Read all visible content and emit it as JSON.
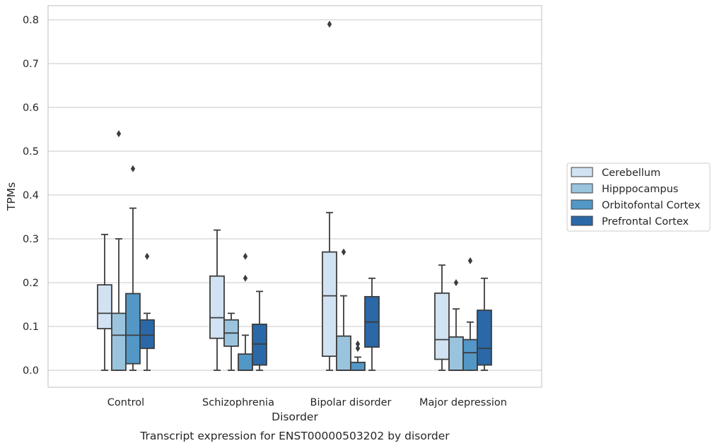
{
  "caption": "Transcript expression for ENST00000503202 by disorder",
  "chart_data": {
    "type": "box",
    "xlabel": "Disorder",
    "ylabel": "TPMs",
    "ylim": [
      -0.04,
      0.83
    ],
    "yticks": [
      0.0,
      0.1,
      0.2,
      0.3,
      0.4,
      0.5,
      0.6,
      0.7,
      0.8
    ],
    "ytick_labels": [
      "0.0",
      "0.1",
      "0.2",
      "0.3",
      "0.4",
      "0.5",
      "0.6",
      "0.7",
      "0.8"
    ],
    "grid": "horizontal",
    "legend_position": "right",
    "categories": [
      "Control",
      "Schizophrenia",
      "Bipolar disorder",
      "Major depression"
    ],
    "series": [
      {
        "name": "Cerebellum",
        "color": "#d1e2f2",
        "boxes": [
          {
            "whisker_low": 0.0,
            "q1": 0.095,
            "median": 0.13,
            "q3": 0.195,
            "whisker_high": 0.31,
            "outliers": []
          },
          {
            "whisker_low": 0.0,
            "q1": 0.073,
            "median": 0.12,
            "q3": 0.215,
            "whisker_high": 0.32,
            "outliers": []
          },
          {
            "whisker_low": 0.0,
            "q1": 0.032,
            "median": 0.17,
            "q3": 0.27,
            "whisker_high": 0.36,
            "outliers": [
              0.79
            ]
          },
          {
            "whisker_low": 0.0,
            "q1": 0.025,
            "median": 0.07,
            "q3": 0.176,
            "whisker_high": 0.24,
            "outliers": []
          }
        ]
      },
      {
        "name": "Hipppocampus",
        "color": "#9ac4de",
        "boxes": [
          {
            "whisker_low": 0.0,
            "q1": 0.0,
            "median": 0.08,
            "q3": 0.13,
            "whisker_high": 0.3,
            "outliers": [
              0.54
            ]
          },
          {
            "whisker_low": 0.0,
            "q1": 0.055,
            "median": 0.085,
            "q3": 0.115,
            "whisker_high": 0.13,
            "outliers": []
          },
          {
            "whisker_low": 0.0,
            "q1": 0.0,
            "median": 0.0,
            "q3": 0.078,
            "whisker_high": 0.17,
            "outliers": [
              0.27
            ]
          },
          {
            "whisker_low": 0.0,
            "q1": 0.0,
            "median": 0.0,
            "q3": 0.076,
            "whisker_high": 0.14,
            "outliers": [
              0.2
            ]
          }
        ]
      },
      {
        "name": "Orbitofontal Cortex",
        "color": "#5397c7",
        "boxes": [
          {
            "whisker_low": 0.0,
            "q1": 0.015,
            "median": 0.08,
            "q3": 0.175,
            "whisker_high": 0.37,
            "outliers": [
              0.46
            ]
          },
          {
            "whisker_low": 0.0,
            "q1": 0.0,
            "median": 0.0,
            "q3": 0.037,
            "whisker_high": 0.08,
            "outliers": [
              0.21,
              0.26
            ]
          },
          {
            "whisker_low": 0.0,
            "q1": 0.0,
            "median": 0.0,
            "q3": 0.018,
            "whisker_high": 0.03,
            "outliers": [
              0.05,
              0.06
            ]
          },
          {
            "whisker_low": 0.0,
            "q1": 0.0,
            "median": 0.04,
            "q3": 0.07,
            "whisker_high": 0.11,
            "outliers": [
              0.25
            ]
          }
        ]
      },
      {
        "name": "Prefrontal Cortex",
        "color": "#2a68a8",
        "boxes": [
          {
            "whisker_low": 0.0,
            "q1": 0.05,
            "median": 0.08,
            "q3": 0.115,
            "whisker_high": 0.13,
            "outliers": [
              0.26
            ]
          },
          {
            "whisker_low": 0.0,
            "q1": 0.012,
            "median": 0.06,
            "q3": 0.105,
            "whisker_high": 0.18,
            "outliers": []
          },
          {
            "whisker_low": 0.0,
            "q1": 0.053,
            "median": 0.11,
            "q3": 0.168,
            "whisker_high": 0.21,
            "outliers": []
          },
          {
            "whisker_low": 0.0,
            "q1": 0.012,
            "median": 0.05,
            "q3": 0.137,
            "whisker_high": 0.21,
            "outliers": []
          }
        ]
      }
    ]
  }
}
